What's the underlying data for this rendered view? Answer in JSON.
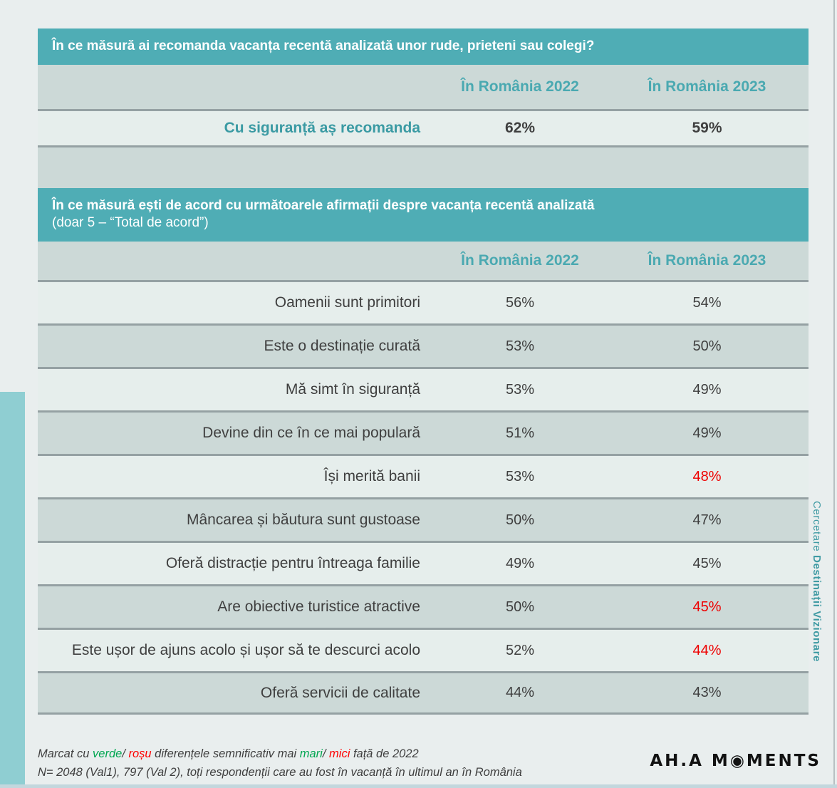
{
  "colors": {
    "header_teal": "#4fadb5",
    "accent_bar_teal": "#8fced2",
    "teal_text": "#4aa9b1",
    "row_light": "#e6eeec",
    "row_dark": "#ccd9d7",
    "text_dark": "#3f3f3f",
    "value_red": "#ee0000",
    "note_green": "#00a651",
    "note_red": "#fe0000"
  },
  "section1": {
    "title": "În ce măsură ai recomanda vacanța recentă analizată unor rude, prieteni sau colegi?",
    "col_2022": "În România 2022",
    "col_2023": "În România 2023",
    "row": {
      "label": "Cu siguranță aș recomanda",
      "v2022": "62%",
      "v2023": "59%"
    }
  },
  "section2": {
    "title_line1": "În ce măsură ești de acord cu următoarele afirmații despre vacanța recentă analizată",
    "title_line2": "(doar 5 – “Total de acord”)",
    "col_2022": "În România 2022",
    "col_2023": "În România 2023",
    "rows": [
      {
        "label": "Oamenii sunt primitori",
        "v2022": "56%",
        "v2023": "54%",
        "v2023_color": "#3f3f3f"
      },
      {
        "label": "Este o destinație curată",
        "v2022": "53%",
        "v2023": "50%",
        "v2023_color": "#3f3f3f"
      },
      {
        "label": "Mă simt în siguranță",
        "v2022": "53%",
        "v2023": "49%",
        "v2023_color": "#3f3f3f"
      },
      {
        "label": "Devine din ce în ce mai populară",
        "v2022": "51%",
        "v2023": "49%",
        "v2023_color": "#3f3f3f"
      },
      {
        "label": "Își merită banii",
        "v2022": "53%",
        "v2023": "48%",
        "v2023_color": "#ee0000"
      },
      {
        "label": "Mâncarea și băutura sunt gustoase",
        "v2022": "50%",
        "v2023": "47%",
        "v2023_color": "#3f3f3f"
      },
      {
        "label": "Oferă distracție pentru întreaga familie",
        "v2022": "49%",
        "v2023": "45%",
        "v2023_color": "#3f3f3f"
      },
      {
        "label": "Are obiective turistice atractive",
        "v2022": "50%",
        "v2023": "45%",
        "v2023_color": "#ee0000"
      },
      {
        "label": "Este ușor de ajuns acolo și ușor să te descurci acolo",
        "v2022": "52%",
        "v2023": "44%",
        "v2023_color": "#ee0000"
      },
      {
        "label": "Oferă servicii de calitate",
        "v2022": "44%",
        "v2023": "43%",
        "v2023_color": "#3f3f3f"
      }
    ]
  },
  "footer": {
    "note1_parts": [
      {
        "text": "Marcat cu ",
        "color": "#3f3f3f"
      },
      {
        "text": "verde",
        "color": "#00a651"
      },
      {
        "text": "/ ",
        "color": "#3f3f3f"
      },
      {
        "text": "roșu",
        "color": "#fe0000"
      },
      {
        "text": " diferențele semnificativ mai ",
        "color": "#3f3f3f"
      },
      {
        "text": "mari",
        "color": "#00a651"
      },
      {
        "text": "/ ",
        "color": "#3f3f3f"
      },
      {
        "text": "mici",
        "color": "#fe0000"
      },
      {
        "text": " față de 2022",
        "color": "#3f3f3f"
      }
    ],
    "note2": "N= 2048 (Val1), 797 (Val 2), toți respondenții care au fost în vacanță în ultimul an în România"
  },
  "logo": {
    "part1": "AH.A M",
    "fisheye": "◉",
    "part2": "MENTS"
  },
  "watermark": {
    "regular": "Cercetare ",
    "bold": "Destinații Vizionare"
  }
}
